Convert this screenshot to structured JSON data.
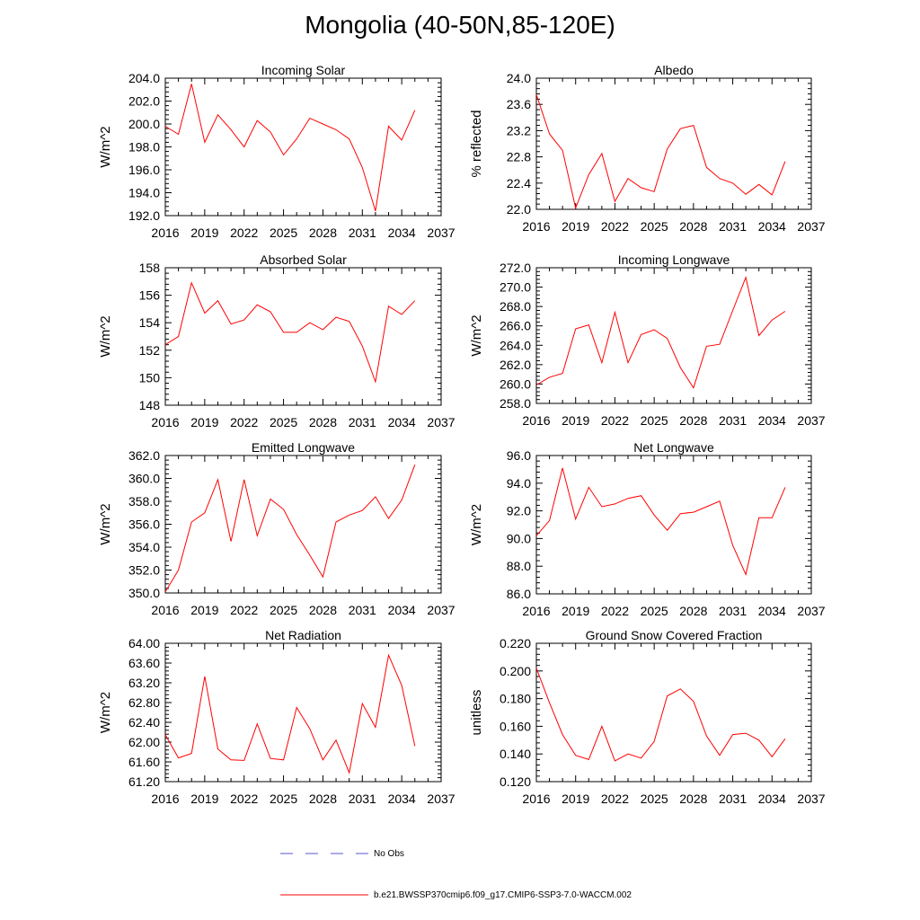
{
  "title": "Mongolia (40-50N,85-120E)",
  "colors": {
    "model_line": "#ff0000",
    "obs_line": "#5555cc",
    "axis": "#000000"
  },
  "legend": [
    {
      "label": "No Obs",
      "style": "dashed",
      "color": "#5555cc"
    },
    {
      "label": "b.e21.BWSSP370cmip6.f09_g17.CMIP6-SSP3-7.0-WACCM.002",
      "style": "solid",
      "color": "#ff0000"
    }
  ],
  "chart_data": [
    {
      "type": "line",
      "title": "Incoming Solar",
      "ylabel": "W/m^2",
      "xlim": [
        2016,
        2037
      ],
      "xticks": [
        "2016",
        "2019",
        "2022",
        "2025",
        "2028",
        "2031",
        "2034",
        "2037"
      ],
      "ylim": [
        192,
        204
      ],
      "yticks": [
        "192.0",
        "194.0",
        "196.0",
        "198.0",
        "200.0",
        "202.0",
        "204.0"
      ],
      "x": [
        2016,
        2017,
        2018,
        2019,
        2020,
        2021,
        2022,
        2023,
        2024,
        2025,
        2026,
        2027,
        2028,
        2029,
        2030,
        2031,
        2032,
        2033,
        2034,
        2035
      ],
      "series": [
        {
          "name": "b.e21.BWSSP370cmip6.f09_g17.CMIP6-SSP3-7.0-WACCM.002",
          "values": [
            199.8,
            199.1,
            203.5,
            198.4,
            200.8,
            199.5,
            198.0,
            200.3,
            199.3,
            197.3,
            198.7,
            200.5,
            200.0,
            199.5,
            198.7,
            196.2,
            192.4,
            199.8,
            198.6,
            201.2
          ]
        }
      ]
    },
    {
      "type": "line",
      "title": "Albedo",
      "ylabel": "% reflected",
      "xlim": [
        2016,
        2037
      ],
      "xticks": [
        "2016",
        "2019",
        "2022",
        "2025",
        "2028",
        "2031",
        "2034",
        "2037"
      ],
      "ylim": [
        22.0,
        24.0
      ],
      "yticks": [
        "22.0",
        "22.4",
        "22.8",
        "23.2",
        "23.6",
        "24.0"
      ],
      "x": [
        2016,
        2017,
        2018,
        2019,
        2020,
        2021,
        2022,
        2023,
        2024,
        2025,
        2026,
        2027,
        2028,
        2029,
        2030,
        2031,
        2032,
        2033,
        2034,
        2035
      ],
      "series": [
        {
          "name": "b.e21.BWSSP370cmip6.f09_g17.CMIP6-SSP3-7.0-WACCM.002",
          "values": [
            23.75,
            23.15,
            22.9,
            22.02,
            22.53,
            22.85,
            22.12,
            22.47,
            22.33,
            22.27,
            22.92,
            23.23,
            23.28,
            22.64,
            22.47,
            22.4,
            22.23,
            22.38,
            22.22,
            22.73
          ]
        }
      ]
    },
    {
      "type": "line",
      "title": "Absorbed Solar",
      "ylabel": "W/m^2",
      "xlim": [
        2016,
        2037
      ],
      "xticks": [
        "2016",
        "2019",
        "2022",
        "2025",
        "2028",
        "2031",
        "2034",
        "2037"
      ],
      "ylim": [
        148,
        158
      ],
      "yticks": [
        "148",
        "150",
        "152",
        "154",
        "156",
        "158"
      ],
      "x": [
        2016,
        2017,
        2018,
        2019,
        2020,
        2021,
        2022,
        2023,
        2024,
        2025,
        2026,
        2027,
        2028,
        2029,
        2030,
        2031,
        2032,
        2033,
        2034,
        2035
      ],
      "series": [
        {
          "name": "b.e21.BWSSP370cmip6.f09_g17.CMIP6-SSP3-7.0-WACCM.002",
          "values": [
            152.4,
            153.0,
            156.9,
            154.7,
            155.6,
            153.9,
            154.2,
            155.3,
            154.8,
            153.3,
            153.3,
            154.0,
            153.5,
            154.4,
            154.1,
            152.3,
            149.7,
            155.2,
            154.6,
            155.6
          ]
        }
      ]
    },
    {
      "type": "line",
      "title": "Incoming Longwave",
      "ylabel": "W/m^2",
      "xlim": [
        2016,
        2037
      ],
      "xticks": [
        "2016",
        "2019",
        "2022",
        "2025",
        "2028",
        "2031",
        "2034",
        "2037"
      ],
      "ylim": [
        258,
        272
      ],
      "yticks": [
        "258.0",
        "260.0",
        "262.0",
        "264.0",
        "266.0",
        "268.0",
        "270.0",
        "272.0"
      ],
      "x": [
        2016,
        2017,
        2018,
        2019,
        2020,
        2021,
        2022,
        2023,
        2024,
        2025,
        2026,
        2027,
        2028,
        2029,
        2030,
        2031,
        2032,
        2033,
        2034,
        2035
      ],
      "series": [
        {
          "name": "b.e21.BWSSP370cmip6.f09_g17.CMIP6-SSP3-7.0-WACCM.002",
          "values": [
            259.9,
            260.7,
            261.1,
            265.7,
            266.1,
            262.2,
            267.4,
            262.2,
            265.1,
            265.6,
            264.7,
            261.7,
            259.6,
            263.9,
            264.1,
            267.6,
            271.0,
            265.0,
            266.6,
            267.5
          ]
        }
      ]
    },
    {
      "type": "line",
      "title": "Emitted Longwave",
      "ylabel": "W/m^2",
      "xlim": [
        2016,
        2037
      ],
      "xticks": [
        "2016",
        "2019",
        "2022",
        "2025",
        "2028",
        "2031",
        "2034",
        "2037"
      ],
      "ylim": [
        350,
        362
      ],
      "yticks": [
        "350.0",
        "352.0",
        "354.0",
        "356.0",
        "358.0",
        "360.0",
        "362.0"
      ],
      "x": [
        2016,
        2017,
        2018,
        2019,
        2020,
        2021,
        2022,
        2023,
        2024,
        2025,
        2026,
        2027,
        2028,
        2029,
        2030,
        2031,
        2032,
        2033,
        2034,
        2035
      ],
      "series": [
        {
          "name": "b.e21.BWSSP370cmip6.f09_g17.CMIP6-SSP3-7.0-WACCM.002",
          "values": [
            350.1,
            352.0,
            356.2,
            357.0,
            359.9,
            354.5,
            359.9,
            355.0,
            358.2,
            357.3,
            355.1,
            353.3,
            351.4,
            356.2,
            356.8,
            357.2,
            358.4,
            356.5,
            358.1,
            361.2
          ]
        }
      ]
    },
    {
      "type": "line",
      "title": "Net Longwave",
      "ylabel": "W/m^2",
      "xlim": [
        2016,
        2037
      ],
      "xticks": [
        "2016",
        "2019",
        "2022",
        "2025",
        "2028",
        "2031",
        "2034",
        "2037"
      ],
      "ylim": [
        86,
        96
      ],
      "yticks": [
        "86.0",
        "88.0",
        "90.0",
        "92.0",
        "94.0",
        "96.0"
      ],
      "x": [
        2016,
        2017,
        2018,
        2019,
        2020,
        2021,
        2022,
        2023,
        2024,
        2025,
        2026,
        2027,
        2028,
        2029,
        2030,
        2031,
        2032,
        2033,
        2034,
        2035
      ],
      "series": [
        {
          "name": "b.e21.BWSSP370cmip6.f09_g17.CMIP6-SSP3-7.0-WACCM.002",
          "values": [
            90.2,
            91.3,
            95.1,
            91.4,
            93.7,
            92.3,
            92.5,
            92.9,
            93.1,
            91.7,
            90.6,
            91.8,
            91.9,
            92.3,
            92.7,
            89.5,
            87.4,
            91.5,
            91.5,
            93.7
          ]
        }
      ]
    },
    {
      "type": "line",
      "title": "Net Radiation",
      "ylabel": "W/m^2",
      "xlim": [
        2016,
        2037
      ],
      "xticks": [
        "2016",
        "2019",
        "2022",
        "2025",
        "2028",
        "2031",
        "2034",
        "2037"
      ],
      "ylim": [
        61.2,
        64.0
      ],
      "yticks": [
        "61.20",
        "61.60",
        "62.00",
        "62.40",
        "62.80",
        "63.20",
        "63.60",
        "64.00"
      ],
      "x": [
        2016,
        2017,
        2018,
        2019,
        2020,
        2021,
        2022,
        2023,
        2024,
        2025,
        2026,
        2027,
        2028,
        2029,
        2030,
        2031,
        2032,
        2033,
        2034,
        2035
      ],
      "series": [
        {
          "name": "b.e21.BWSSP370cmip6.f09_g17.CMIP6-SSP3-7.0-WACCM.002",
          "values": [
            62.15,
            61.68,
            61.77,
            63.33,
            61.86,
            61.64,
            61.63,
            62.37,
            61.67,
            61.64,
            62.7,
            62.27,
            61.64,
            62.04,
            61.38,
            62.78,
            62.3,
            63.76,
            63.15,
            61.92
          ]
        }
      ]
    },
    {
      "type": "line",
      "title": "Ground Snow Covered Fraction",
      "ylabel": "unitless",
      "xlim": [
        2016,
        2037
      ],
      "xticks": [
        "2016",
        "2019",
        "2022",
        "2025",
        "2028",
        "2031",
        "2034",
        "2037"
      ],
      "ylim": [
        0.12,
        0.22
      ],
      "yticks": [
        "0.120",
        "0.140",
        "0.160",
        "0.180",
        "0.200",
        "0.220"
      ],
      "x": [
        2016,
        2017,
        2018,
        2019,
        2020,
        2021,
        2022,
        2023,
        2024,
        2025,
        2026,
        2027,
        2028,
        2029,
        2030,
        2031,
        2032,
        2033,
        2034,
        2035
      ],
      "series": [
        {
          "name": "b.e21.BWSSP370cmip6.f09_g17.CMIP6-SSP3-7.0-WACCM.002",
          "values": [
            0.202,
            0.177,
            0.154,
            0.139,
            0.136,
            0.16,
            0.135,
            0.14,
            0.137,
            0.149,
            0.182,
            0.187,
            0.178,
            0.153,
            0.139,
            0.154,
            0.155,
            0.15,
            0.138,
            0.151
          ]
        }
      ]
    }
  ]
}
